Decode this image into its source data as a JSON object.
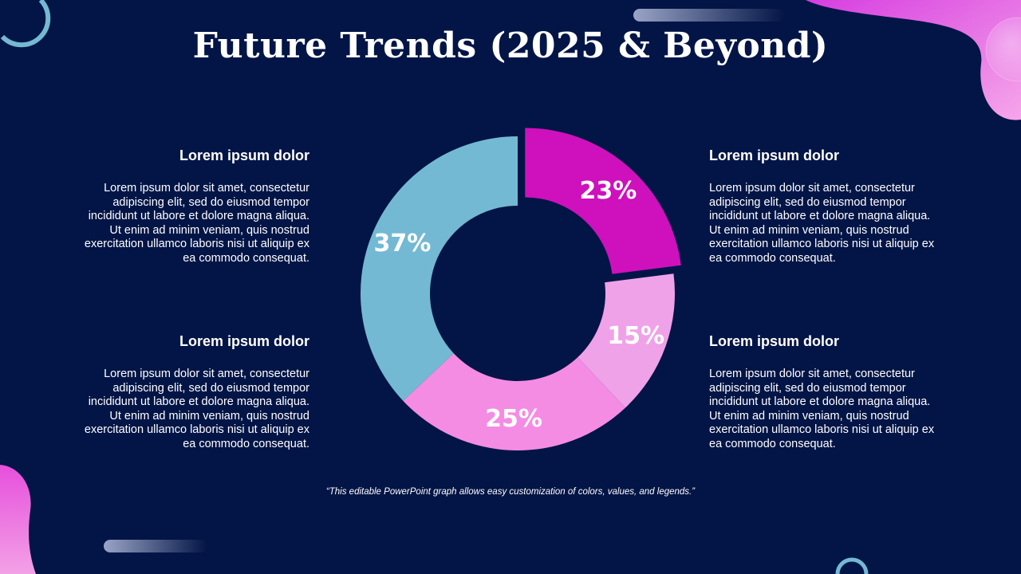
{
  "slide": {
    "title": "Future Trends (2025 & Beyond)",
    "footnote": "“This editable PowerPoint graph allows easy customization of colors, values, and legends.”",
    "colors": {
      "background": "#031546",
      "accent_pink": "#ee4fd6",
      "accent_blue": "#74b9d3"
    }
  },
  "blocks": [
    {
      "heading": "Lorem ipsum dolor",
      "body": "Lorem ipsum dolor sit amet, consectetur adipiscing elit, sed do eiusmod tempor incididunt ut labore et dolore magna aliqua.\nUt enim ad minim veniam, quis nostrud exercitation ullamco laboris nisi ut aliquip ex ea commodo consequat."
    },
    {
      "heading": "Lorem ipsum dolor",
      "body": "Lorem ipsum dolor sit amet, consectetur adipiscing elit, sed do eiusmod tempor incididunt ut labore et dolore magna aliqua.\nUt enim ad minim veniam, quis nostrud exercitation ullamco laboris nisi ut aliquip ex ea commodo consequat."
    },
    {
      "heading": "Lorem ipsum dolor",
      "body": "Lorem ipsum dolor sit amet, consectetur adipiscing elit, sed do eiusmod tempor incididunt ut labore et dolore magna aliqua.\nUt enim ad minim veniam, quis nostrud exercitation ullamco laboris nisi ut aliquip ex ea commodo consequat."
    },
    {
      "heading": "Lorem ipsum dolor",
      "body": "Lorem ipsum dolor sit amet, consectetur adipiscing elit, sed do eiusmod tempor incididunt ut labore et dolore magna aliqua.\nUt enim ad minim veniam, quis nostrud exercitation ullamco laboris nisi ut aliquip ex ea commodo consequat."
    }
  ],
  "chart_data": {
    "type": "pie",
    "subtype": "donut",
    "title": "",
    "values": [
      23,
      15,
      25,
      37
    ],
    "labels": [
      "23%",
      "15%",
      "25%",
      "37%"
    ],
    "colors": [
      "#cf10bd",
      "#f0a2e8",
      "#f48ce4",
      "#74b9d3"
    ],
    "exploded": [
      true,
      false,
      false,
      false
    ],
    "start_angle_deg": 0,
    "direction": "clockwise",
    "legend": "none"
  }
}
